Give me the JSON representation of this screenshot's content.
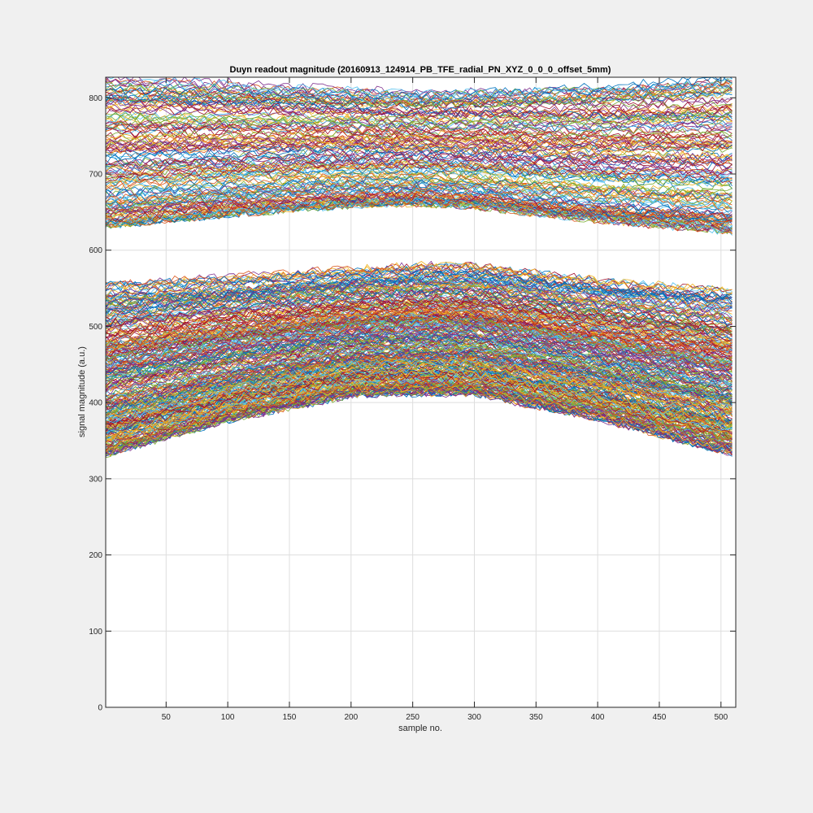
{
  "chart_data": {
    "type": "line",
    "title": "Duyn readout magnitude (20160913_124914_PB_TFE_radial_PN_XYZ_0_0_0_offset_5mm)",
    "xlabel": "sample no.",
    "ylabel": "signal magnitude (a.u.)",
    "xlim": [
      1,
      512
    ],
    "ylim": [
      0,
      827
    ],
    "xticks": [
      50,
      100,
      150,
      200,
      250,
      300,
      350,
      400,
      450,
      500
    ],
    "yticks": [
      0,
      100,
      200,
      300,
      400,
      500,
      600,
      700,
      800
    ],
    "grid": true,
    "legend": "none",
    "series_count": 2000,
    "band_lower": {
      "x": [
        1,
        100,
        200,
        256,
        300,
        400,
        512
      ],
      "y_min": [
        333,
        378,
        410,
        413,
        412,
        380,
        333
      ],
      "y_max": [
        555,
        565,
        575,
        580,
        580,
        560,
        545
      ]
    },
    "band_upper": {
      "x": [
        1,
        100,
        200,
        256,
        300,
        400,
        512
      ],
      "y_min": [
        633,
        648,
        660,
        662,
        658,
        640,
        625
      ],
      "y_max": [
        827,
        820,
        812,
        808,
        810,
        815,
        827
      ]
    },
    "line_colors": [
      "#0072bd",
      "#d95319",
      "#edb120",
      "#7e2f8e",
      "#77ac30",
      "#4dbeee",
      "#a2142f"
    ]
  }
}
